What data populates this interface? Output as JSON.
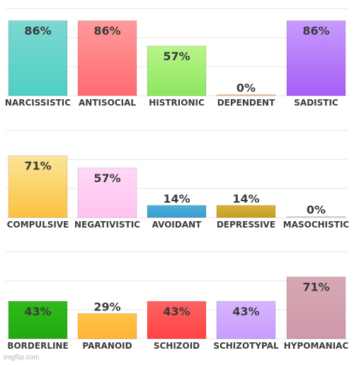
{
  "chart_data": [
    {
      "type": "bar",
      "ylim": [
        0,
        100
      ],
      "grid": true,
      "categories": [
        "NARCISSISTIC",
        "ANTISOCIAL",
        "HISTRIONIC",
        "DEPENDENT",
        "SADISTIC"
      ],
      "values": [
        86,
        86,
        57,
        0,
        86
      ],
      "value_labels": [
        "86%",
        "86%",
        "57%",
        "0%",
        "86%"
      ],
      "colors": [
        [
          "#7dd8d1",
          "#4fcfc3"
        ],
        [
          "#ff9a9a",
          "#ff6b72"
        ],
        [
          "#b8f58a",
          "#8de65f"
        ],
        [
          "#ffc88a",
          "#ffb37a"
        ],
        [
          "#c79bff",
          "#a85ef5"
        ]
      ]
    },
    {
      "type": "bar",
      "ylim": [
        0,
        100
      ],
      "grid": true,
      "categories": [
        "COMPULSIVE",
        "NEGATIVISTIC",
        "AVOIDANT",
        "DEPRESSIVE",
        "MASOCHISTIC"
      ],
      "values": [
        71,
        57,
        14,
        14,
        0
      ],
      "value_labels": [
        "71%",
        "57%",
        "14%",
        "14%",
        "0%"
      ],
      "colors": [
        [
          "#fbe596",
          "#fbc23f"
        ],
        [
          "#ffd8f6",
          "#ffc3ef"
        ],
        [
          "#4cb0d8",
          "#3a9fd0"
        ],
        [
          "#d8b33a",
          "#c99c22"
        ],
        [
          "#d0e8f3",
          "#bfe0ef"
        ]
      ]
    },
    {
      "type": "bar",
      "ylim": [
        0,
        100
      ],
      "grid": true,
      "categories": [
        "BORDERLINE",
        "PARANOID",
        "SCHIZOID",
        "SCHIZOTYPAL",
        "HYPOMANIAC"
      ],
      "values": [
        43,
        29,
        43,
        43,
        71
      ],
      "value_labels": [
        "43%",
        "29%",
        "43%",
        "43%",
        "71%"
      ],
      "colors": [
        [
          "#2fbb1a",
          "#22a90f"
        ],
        [
          "#ffc44a",
          "#ffb433"
        ],
        [
          "#ff6262",
          "#ff4343"
        ],
        [
          "#d7b5ff",
          "#c79cff"
        ],
        [
          "#d7a8b4",
          "#ce98a8"
        ]
      ]
    }
  ],
  "watermark": "imgflip.com"
}
